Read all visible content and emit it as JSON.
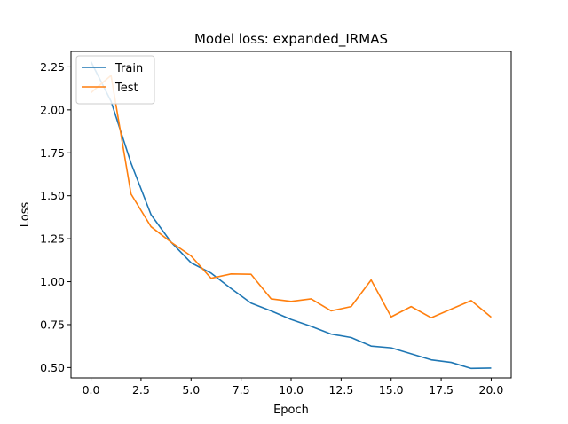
{
  "chart_data": {
    "type": "line",
    "title": "Model loss: expanded_IRMAS",
    "xlabel": "Epoch",
    "ylabel": "Loss",
    "xlim": [
      -1.0,
      21.0
    ],
    "ylim": [
      0.44,
      2.34
    ],
    "xticks": [
      0.0,
      2.5,
      5.0,
      7.5,
      10.0,
      12.5,
      15.0,
      17.5,
      20.0
    ],
    "xtick_labels": [
      "0.0",
      "2.5",
      "5.0",
      "7.5",
      "10.0",
      "12.5",
      "15.0",
      "17.5",
      "20.0"
    ],
    "yticks": [
      0.5,
      0.75,
      1.0,
      1.25,
      1.5,
      1.75,
      2.0,
      2.25
    ],
    "ytick_labels": [
      "0.50",
      "0.75",
      "1.00",
      "1.25",
      "1.50",
      "1.75",
      "2.00",
      "2.25"
    ],
    "grid": false,
    "legend_position": "top-left",
    "x": [
      0,
      1,
      2,
      3,
      4,
      5,
      6,
      7,
      8,
      9,
      10,
      11,
      12,
      13,
      14,
      15,
      16,
      17,
      18,
      19,
      20
    ],
    "series": [
      {
        "name": "Train",
        "color": "#1f77b4",
        "values": [
          2.28,
          2.05,
          1.69,
          1.39,
          1.23,
          1.11,
          1.05,
          0.96,
          0.875,
          0.83,
          0.78,
          0.74,
          0.695,
          0.675,
          0.625,
          0.615,
          0.58,
          0.545,
          0.53,
          0.495,
          0.497
        ]
      },
      {
        "name": "Test",
        "color": "#ff7f0e",
        "values": [
          2.1,
          2.2,
          1.51,
          1.32,
          1.23,
          1.15,
          1.02,
          1.045,
          1.043,
          0.9,
          0.885,
          0.9,
          0.83,
          0.855,
          1.01,
          0.795,
          0.855,
          0.79,
          0.84,
          0.89,
          0.793
        ]
      }
    ]
  }
}
